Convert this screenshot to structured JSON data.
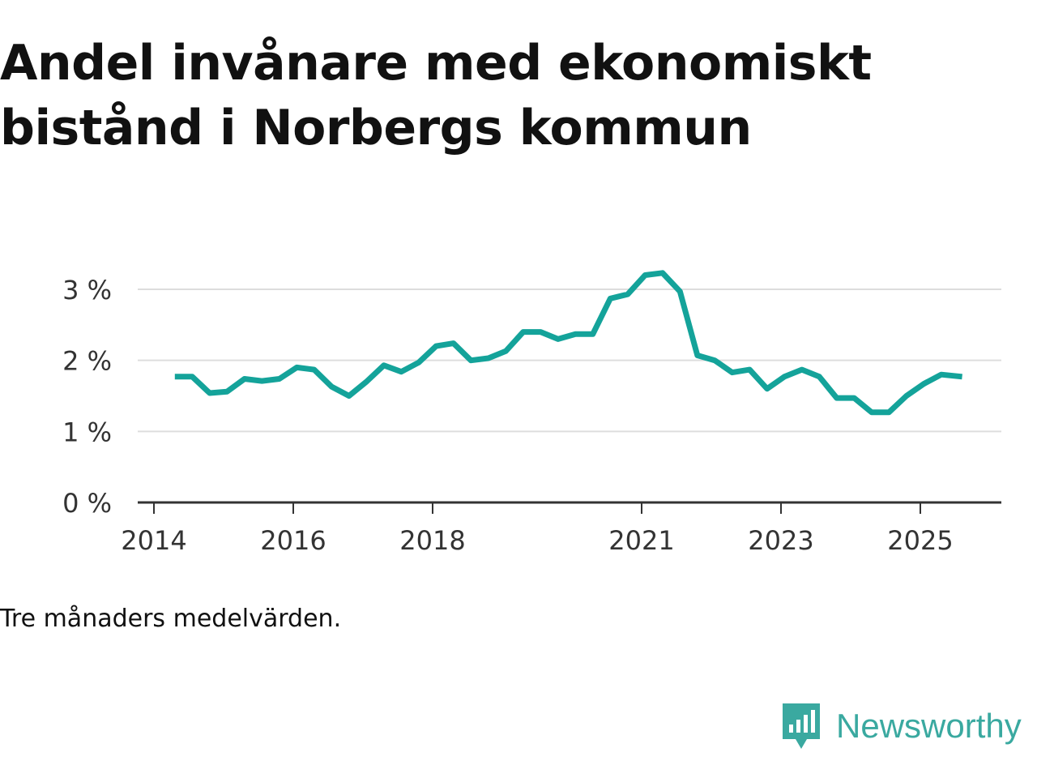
{
  "title": "Andel invånare med ekonomiskt bistånd i Norbergs kommun",
  "note": "Tre månaders medelvärden.",
  "brand": {
    "name": "Newsworthy",
    "icon": "newsworthy-logo-icon",
    "color": "#3aa9a0"
  },
  "colors": {
    "line": "#14a39a",
    "grid": "#dddddd",
    "axis": "#333333"
  },
  "chart_data": {
    "type": "line",
    "title": "Andel invånare med ekonomiskt bistånd i Norbergs kommun",
    "xlabel": "",
    "ylabel": "",
    "xlim": [
      2014.0,
      2026.2
    ],
    "ylim": [
      0,
      3.3
    ],
    "x_ticks": [
      {
        "value": 2014,
        "label": "2014"
      },
      {
        "value": 2016,
        "label": "2016"
      },
      {
        "value": 2018,
        "label": "2018"
      },
      {
        "value": 2021,
        "label": "2021"
      },
      {
        "value": 2023,
        "label": "2023"
      },
      {
        "value": 2025,
        "label": "2025"
      }
    ],
    "y_ticks": [
      {
        "value": 0,
        "label": "0 %"
      },
      {
        "value": 1,
        "label": "1 %"
      },
      {
        "value": 2,
        "label": "2 %"
      },
      {
        "value": 3,
        "label": "3 %"
      }
    ],
    "grid": true,
    "series": [
      {
        "name": "Andel invånare med ekonomiskt bistånd",
        "x": [
          2014.3,
          2014.55,
          2014.8,
          2015.05,
          2015.3,
          2015.55,
          2015.8,
          2016.05,
          2016.3,
          2016.55,
          2016.8,
          2017.05,
          2017.3,
          2017.55,
          2017.8,
          2018.05,
          2018.3,
          2018.55,
          2018.8,
          2019.05,
          2019.3,
          2019.55,
          2019.8,
          2020.05,
          2020.3,
          2020.55,
          2020.8,
          2021.05,
          2021.3,
          2021.55,
          2021.8,
          2022.05,
          2022.3,
          2022.55,
          2022.8,
          2023.05,
          2023.3,
          2023.55,
          2023.8,
          2024.05,
          2024.3,
          2024.55,
          2024.8,
          2025.05,
          2025.3,
          2025.6
        ],
        "values": [
          1.77,
          1.77,
          1.54,
          1.56,
          1.74,
          1.71,
          1.74,
          1.9,
          1.87,
          1.63,
          1.5,
          1.7,
          1.93,
          1.84,
          1.97,
          2.2,
          2.24,
          2.0,
          2.03,
          2.13,
          2.4,
          2.4,
          2.3,
          2.37,
          2.37,
          2.87,
          2.93,
          3.2,
          3.23,
          2.97,
          2.07,
          2.0,
          1.83,
          1.87,
          1.6,
          1.77,
          1.87,
          1.77,
          1.47,
          1.47,
          1.27,
          1.27,
          1.5,
          1.67,
          1.8,
          1.77
        ]
      }
    ]
  }
}
